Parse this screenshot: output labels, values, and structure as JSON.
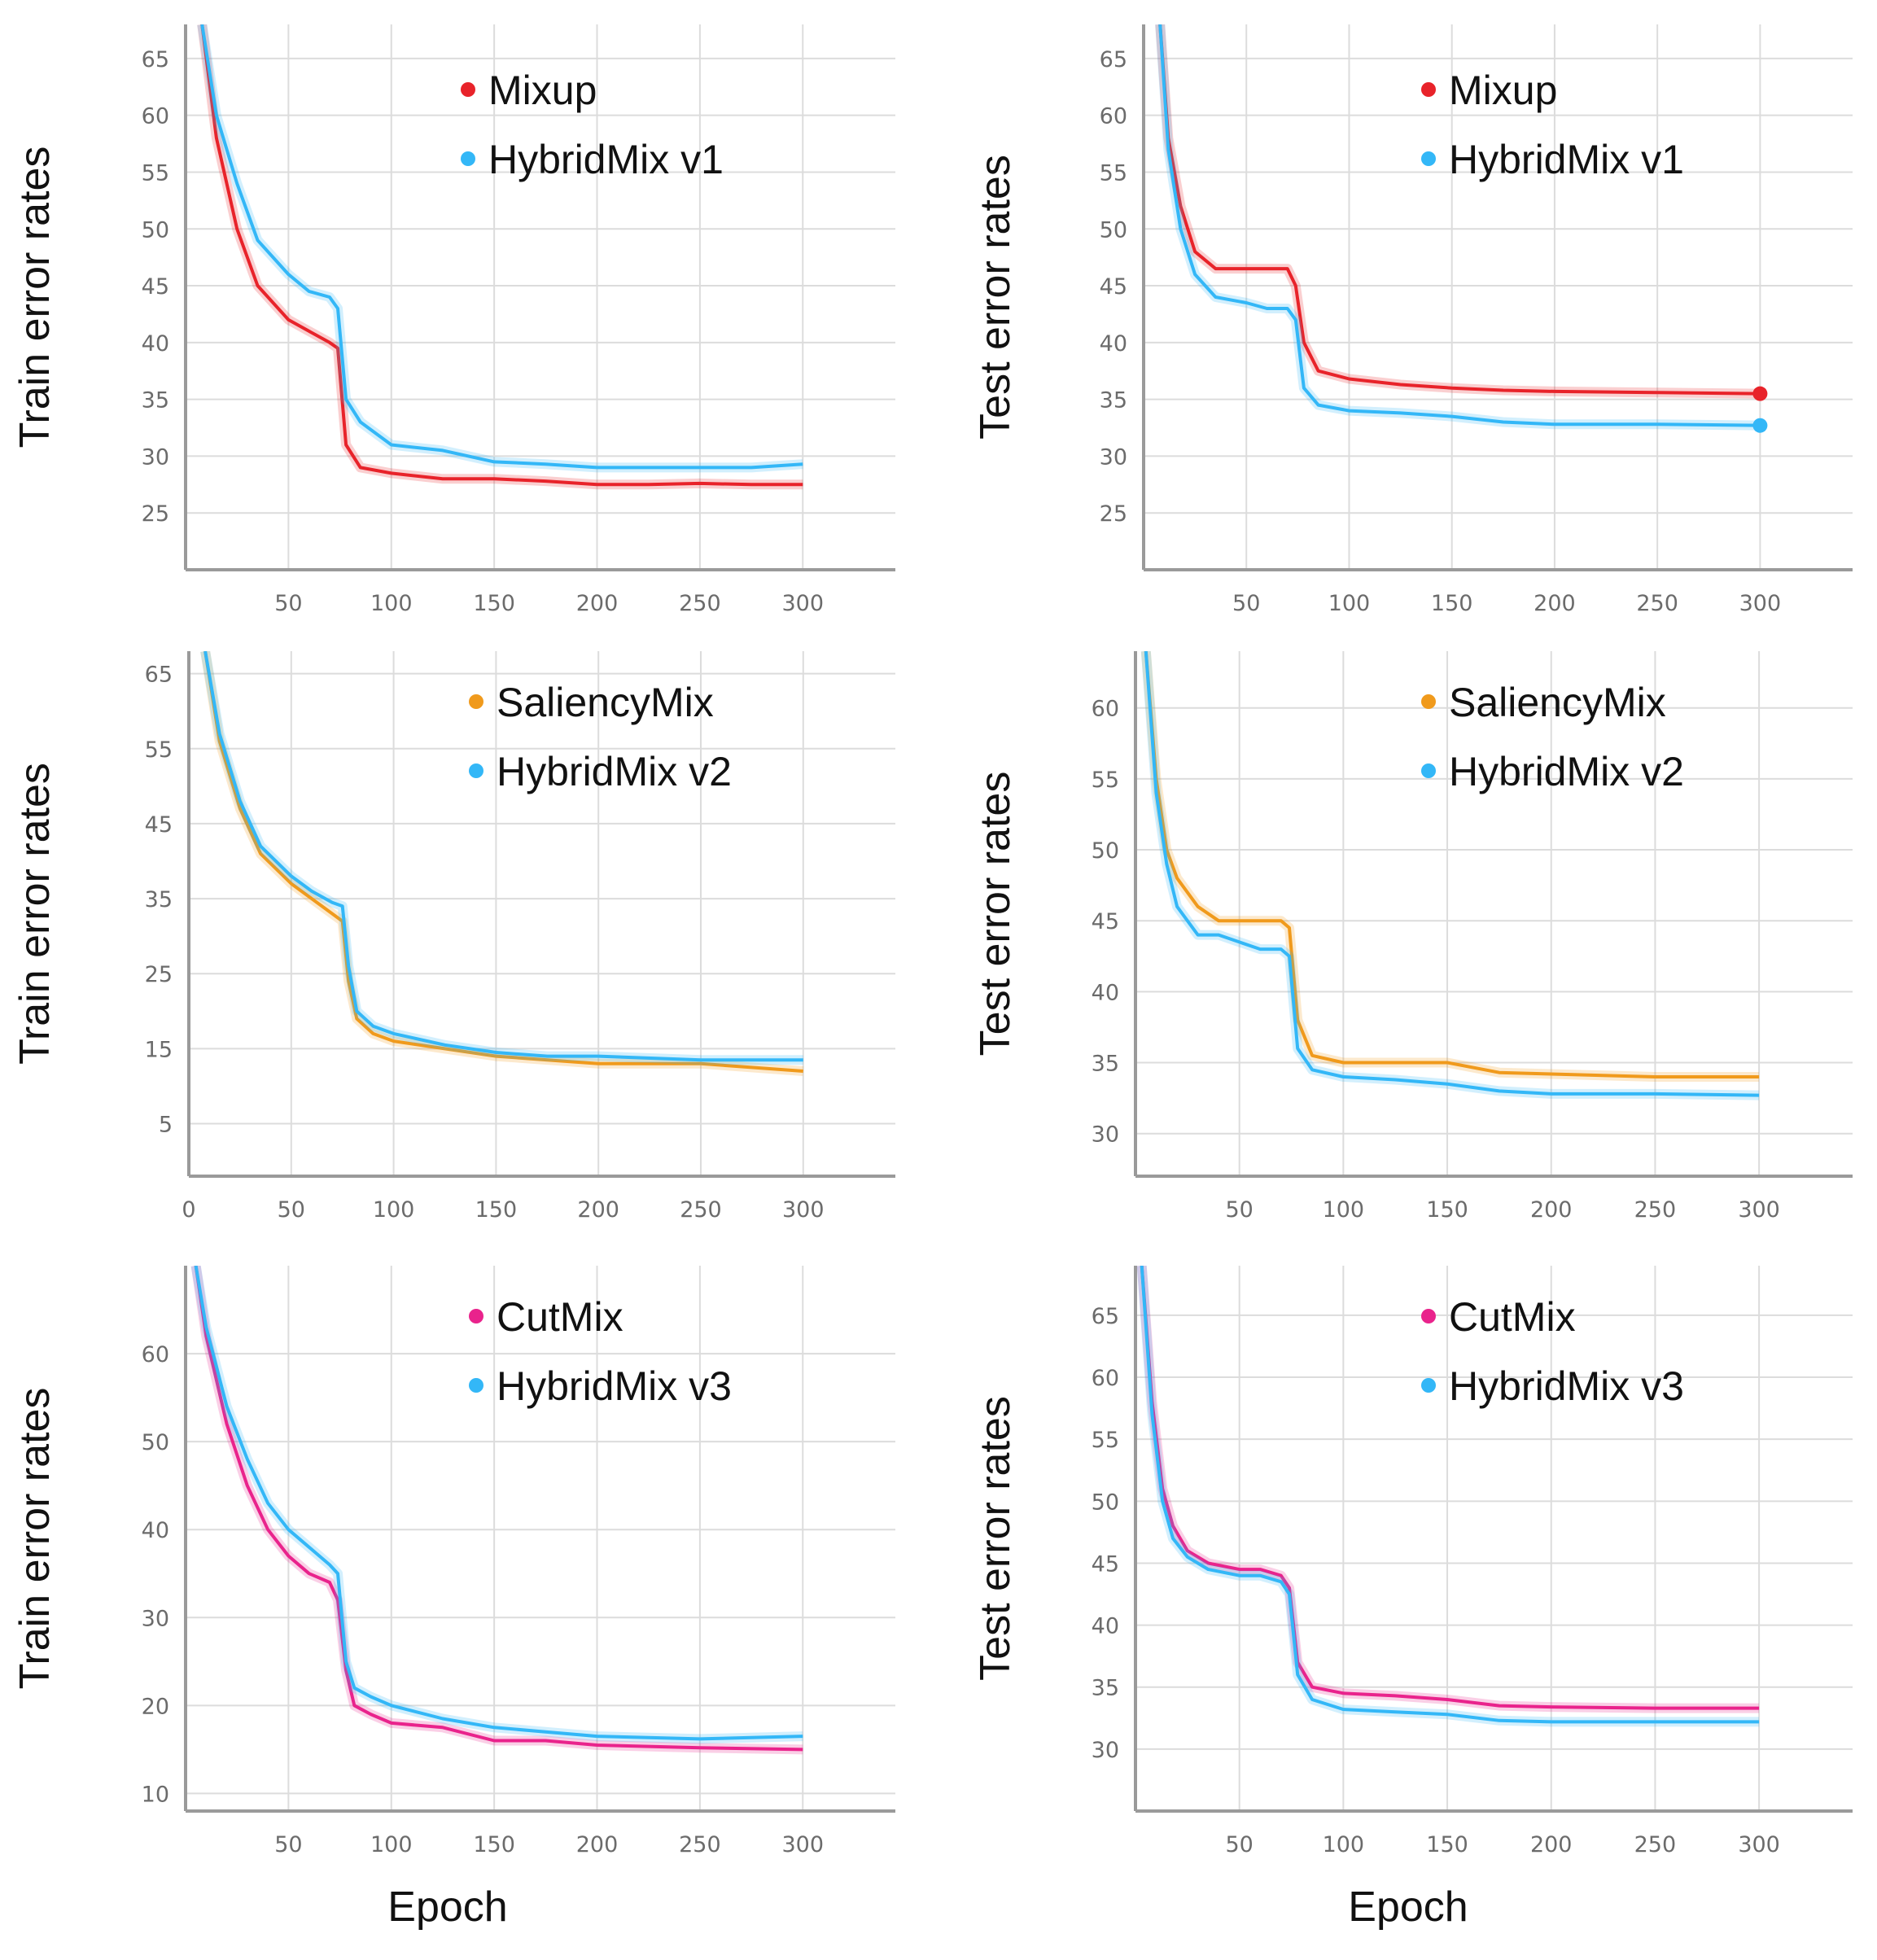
{
  "figure": {
    "xlabel": "Epoch",
    "colors": {
      "mixup": "#e8232a",
      "saliencymix": "#f09a1c",
      "cutmix": "#e9238c",
      "hybridmix": "#33b7f7"
    }
  },
  "chart_data": [
    {
      "type": "line",
      "ylabel": "Train error rates",
      "xlim": [
        0,
        345
      ],
      "ylim": [
        20,
        68
      ],
      "xticks": [
        50,
        100,
        150,
        200,
        250,
        300
      ],
      "yticks": [
        25,
        30,
        35,
        40,
        45,
        50,
        55,
        60,
        65
      ],
      "series": [
        {
          "name": "Mixup",
          "color": "#e8232a",
          "x": [
            8,
            15,
            25,
            35,
            50,
            60,
            70,
            74,
            78,
            85,
            100,
            125,
            150,
            175,
            200,
            225,
            250,
            275,
            300
          ],
          "y": [
            68,
            58,
            50,
            45,
            42,
            41,
            40,
            39.5,
            31,
            29,
            28.5,
            28,
            28,
            27.8,
            27.5,
            27.5,
            27.6,
            27.5,
            27.5
          ]
        },
        {
          "name": "HybridMix v1",
          "color": "#33b7f7",
          "x": [
            8,
            15,
            25,
            35,
            50,
            60,
            70,
            74,
            78,
            85,
            100,
            125,
            150,
            175,
            200,
            225,
            250,
            275,
            300
          ],
          "y": [
            68,
            60,
            54,
            49,
            46,
            44.5,
            44,
            43,
            35,
            33,
            31,
            30.5,
            29.5,
            29.3,
            29,
            29,
            29,
            29,
            29.3
          ]
        }
      ]
    },
    {
      "type": "line",
      "ylabel": "Test error rates",
      "xlim": [
        0,
        345
      ],
      "ylim": [
        20,
        68
      ],
      "xticks": [
        50,
        100,
        150,
        200,
        250,
        300
      ],
      "yticks": [
        25,
        30,
        35,
        40,
        45,
        50,
        55,
        60,
        65
      ],
      "series": [
        {
          "name": "Mixup",
          "color": "#e8232a",
          "x": [
            8,
            12,
            18,
            25,
            35,
            50,
            60,
            70,
            74,
            78,
            85,
            100,
            125,
            150,
            175,
            200,
            250,
            300
          ],
          "y": [
            68,
            58,
            52,
            48,
            46.5,
            46.5,
            46.5,
            46.5,
            45,
            40,
            37.5,
            36.8,
            36.3,
            36,
            35.8,
            35.7,
            35.6,
            35.5
          ]
        },
        {
          "name": "HybridMix v1",
          "color": "#33b7f7",
          "x": [
            8,
            12,
            18,
            25,
            35,
            50,
            60,
            70,
            74,
            78,
            85,
            100,
            125,
            150,
            175,
            200,
            250,
            300
          ],
          "y": [
            68,
            57,
            50,
            46,
            44,
            43.5,
            43,
            43,
            42,
            36,
            34.5,
            34,
            33.8,
            33.5,
            33,
            32.8,
            32.8,
            32.7
          ]
        }
      ]
    },
    {
      "type": "line",
      "ylabel": "Train error rates",
      "xlim": [
        0,
        345
      ],
      "ylim": [
        -2,
        68
      ],
      "xticks": [
        0,
        50,
        100,
        150,
        200,
        250,
        300
      ],
      "yticks": [
        5,
        15,
        25,
        35,
        45,
        55,
        65
      ],
      "series": [
        {
          "name": "SaliencyMix",
          "color": "#f09a1c",
          "x": [
            8,
            15,
            25,
            35,
            50,
            60,
            70,
            75,
            78,
            82,
            90,
            100,
            125,
            150,
            175,
            200,
            250,
            300
          ],
          "y": [
            68,
            56,
            47,
            41,
            37,
            35,
            33,
            32,
            24,
            19,
            17,
            16,
            15,
            14,
            13.5,
            13,
            13,
            12
          ]
        },
        {
          "name": "HybridMix v2",
          "color": "#33b7f7",
          "x": [
            8,
            15,
            25,
            35,
            50,
            60,
            70,
            75,
            78,
            82,
            90,
            100,
            125,
            150,
            175,
            200,
            250,
            300
          ],
          "y": [
            68,
            57,
            48,
            42,
            38,
            36,
            34.5,
            34,
            26,
            20,
            18,
            17,
            15.5,
            14.5,
            14,
            14,
            13.5,
            13.5
          ]
        }
      ]
    },
    {
      "type": "line",
      "ylabel": "Test error rates",
      "xlim": [
        0,
        345
      ],
      "ylim": [
        27,
        64
      ],
      "xticks": [
        50,
        100,
        150,
        200,
        250,
        300
      ],
      "yticks": [
        30,
        35,
        40,
        45,
        50,
        55,
        60
      ],
      "series": [
        {
          "name": "SaliencyMix",
          "color": "#f09a1c",
          "x": [
            5,
            10,
            15,
            20,
            30,
            40,
            50,
            60,
            70,
            74,
            78,
            85,
            100,
            125,
            150,
            175,
            200,
            250,
            300
          ],
          "y": [
            64,
            55,
            50,
            48,
            46,
            45,
            45,
            45,
            45,
            44.5,
            38,
            35.5,
            35,
            35,
            35,
            34.3,
            34.2,
            34,
            34
          ]
        },
        {
          "name": "HybridMix v2",
          "color": "#33b7f7",
          "x": [
            5,
            10,
            15,
            20,
            30,
            40,
            50,
            60,
            70,
            74,
            78,
            85,
            100,
            125,
            150,
            175,
            200,
            250,
            300
          ],
          "y": [
            64,
            54,
            49,
            46,
            44,
            44,
            43.5,
            43,
            43,
            42.5,
            36,
            34.5,
            34,
            33.8,
            33.5,
            33,
            32.8,
            32.8,
            32.7
          ]
        }
      ]
    },
    {
      "type": "line",
      "ylabel": "Train error rates",
      "xlim": [
        0,
        345
      ],
      "ylim": [
        8,
        70
      ],
      "xticks": [
        50,
        100,
        150,
        200,
        250,
        300
      ],
      "yticks": [
        10,
        20,
        30,
        40,
        50,
        60
      ],
      "series": [
        {
          "name": "CutMix",
          "color": "#e9238c",
          "x": [
            5,
            10,
            20,
            30,
            40,
            50,
            60,
            70,
            74,
            78,
            82,
            90,
            100,
            125,
            150,
            175,
            200,
            250,
            300
          ],
          "y": [
            70,
            62,
            52,
            45,
            40,
            37,
            35,
            34,
            32,
            24,
            20,
            19,
            18,
            17.5,
            16,
            16,
            15.5,
            15.2,
            15
          ]
        },
        {
          "name": "HybridMix v3",
          "color": "#33b7f7",
          "x": [
            5,
            10,
            20,
            30,
            40,
            50,
            60,
            70,
            74,
            78,
            82,
            90,
            100,
            125,
            150,
            175,
            200,
            250,
            300
          ],
          "y": [
            70,
            63,
            54,
            48,
            43,
            40,
            38,
            36,
            35,
            25,
            22,
            21,
            20,
            18.5,
            17.5,
            17,
            16.5,
            16.2,
            16.5
          ]
        }
      ]
    },
    {
      "type": "line",
      "ylabel": "Test error rates",
      "xlim": [
        0,
        345
      ],
      "ylim": [
        25,
        69
      ],
      "xticks": [
        50,
        100,
        150,
        200,
        250,
        300
      ],
      "yticks": [
        30,
        35,
        40,
        45,
        50,
        55,
        60,
        65
      ],
      "series": [
        {
          "name": "CutMix",
          "color": "#e9238c",
          "x": [
            3,
            8,
            13,
            18,
            25,
            35,
            50,
            60,
            70,
            74,
            78,
            85,
            100,
            125,
            150,
            175,
            200,
            250,
            300
          ],
          "y": [
            69,
            58,
            51,
            48,
            46,
            45,
            44.5,
            44.5,
            44,
            43,
            37,
            35,
            34.5,
            34.3,
            34,
            33.5,
            33.4,
            33.3,
            33.3
          ]
        },
        {
          "name": "HybridMix v3",
          "color": "#33b7f7",
          "x": [
            3,
            8,
            13,
            18,
            25,
            35,
            50,
            60,
            70,
            74,
            78,
            85,
            100,
            125,
            150,
            175,
            200,
            250,
            300
          ],
          "y": [
            69,
            57,
            50,
            47,
            45.5,
            44.5,
            44,
            44,
            43.5,
            42.5,
            36,
            34,
            33.2,
            33,
            32.8,
            32.3,
            32.2,
            32.2,
            32.2
          ]
        }
      ]
    }
  ]
}
